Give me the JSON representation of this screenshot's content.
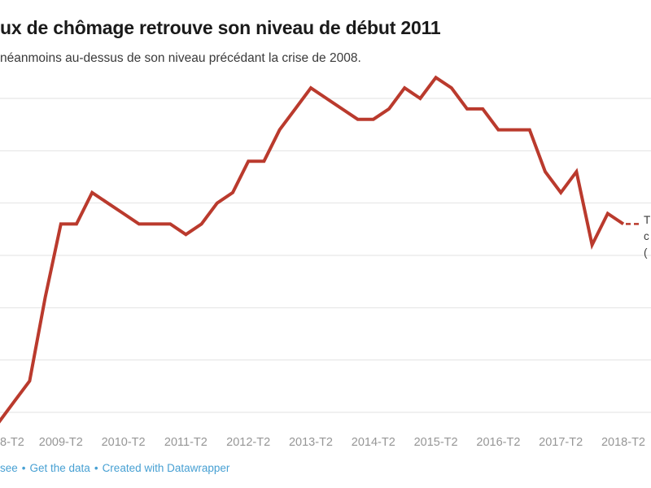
{
  "header": {
    "title": "ux de chômage retrouve son niveau de début 2011",
    "subtitle": "néanmoins au-dessus de son niveau précédant la crise de 2008."
  },
  "footer": {
    "links": [
      "see",
      "Get the data",
      "Created with Datawrapper"
    ],
    "separator": "•",
    "link_color": "#47a0d3"
  },
  "chart_data": {
    "type": "line",
    "title": "ux de chômage retrouve son niveau de début 2011",
    "subtitle": "néanmoins au-dessus de son niveau précédant la crise de 2008.",
    "x": [
      "2008-T2",
      "2008-T3",
      "2008-T4",
      "2009-T1",
      "2009-T2",
      "2009-T3",
      "2009-T4",
      "2010-T1",
      "2010-T2",
      "2010-T3",
      "2010-T4",
      "2011-T1",
      "2011-T2",
      "2011-T3",
      "2011-T4",
      "2012-T1",
      "2012-T2",
      "2012-T3",
      "2012-T4",
      "2013-T1",
      "2013-T2",
      "2013-T3",
      "2013-T4",
      "2014-T1",
      "2014-T2",
      "2014-T3",
      "2014-T4",
      "2015-T1",
      "2015-T2",
      "2015-T3",
      "2015-T4",
      "2016-T1",
      "2016-T2",
      "2016-T3",
      "2016-T4",
      "2017-T1",
      "2017-T2",
      "2017-T3",
      "2017-T4",
      "2018-T1",
      "2018-T2"
    ],
    "values": [
      7.4,
      7.6,
      7.8,
      8.6,
      9.3,
      9.3,
      9.6,
      9.5,
      9.4,
      9.3,
      9.3,
      9.3,
      9.2,
      9.3,
      9.5,
      9.6,
      9.9,
      9.9,
      10.2,
      10.4,
      10.6,
      10.5,
      10.4,
      10.3,
      10.3,
      10.4,
      10.6,
      10.5,
      10.7,
      10.6,
      10.4,
      10.4,
      10.2,
      10.2,
      10.2,
      9.8,
      9.6,
      9.8,
      9.1,
      9.4,
      9.3
    ],
    "x_tick_labels": [
      "8-T2",
      "2009-T2",
      "2010-T2",
      "2011-T2",
      "2012-T2",
      "2013-T2",
      "2014-T2",
      "2015-T2",
      "2016-T2",
      "2017-T2",
      "2018-T2"
    ],
    "xlabel": "",
    "ylabel": "",
    "ylim": [
      7.3,
      10.9
    ],
    "gridline_values": [
      7.5,
      8.0,
      8.5,
      9.0,
      9.5,
      10.0,
      10.5
    ],
    "grid": "horizontal",
    "y_axis_labels_visible": false,
    "line_color": "#ba3a2d",
    "gridline_color": "#e2e2e2",
    "tick_label_color": "#969696",
    "legend_position": "direct-line-label-right-clipped",
    "end_label_fragments": [
      "T",
      "c",
      "("
    ]
  }
}
